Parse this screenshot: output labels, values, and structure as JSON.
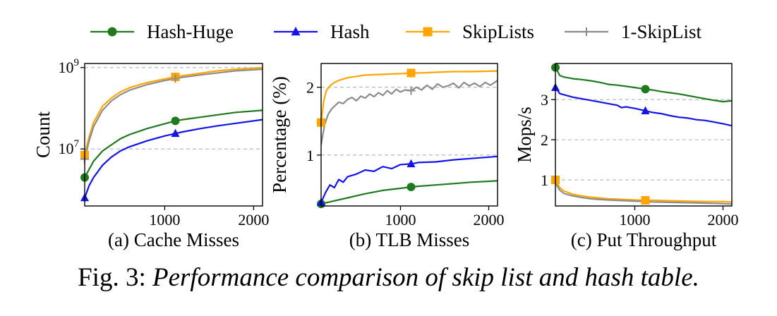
{
  "caption": {
    "prefix": "Fig. 3:",
    "title": "Performance comparison of skip list and hash table."
  },
  "legend": {
    "placement": "top-center",
    "entries": [
      {
        "label": "Hash-Huge",
        "color": "#1f7a1f",
        "marker": "circle"
      },
      {
        "label": "Hash",
        "color": "#1414e6",
        "marker": "triangle"
      },
      {
        "label": "SkipLists",
        "color": "#ffa500",
        "marker": "square"
      },
      {
        "label": "1-SkipList",
        "color": "#8c8c8c",
        "marker": "plus"
      }
    ]
  },
  "chart_data": [
    {
      "type": "line",
      "subtitle": "(a) Cache Misses",
      "ylabel": "Count",
      "xlabel": "",
      "yscale": "log",
      "xlim": [
        100,
        2100
      ],
      "ylim_log10": [
        5.6,
        9.1
      ],
      "xticks": [
        {
          "value": 1000,
          "label": "1000"
        },
        {
          "value": 2000,
          "label": "2000"
        }
      ],
      "yticks": [
        {
          "exp": 7,
          "base": "10",
          "sup": "7"
        },
        {
          "exp": 9,
          "base": "10",
          "sup": "9"
        }
      ],
      "grid": "horizontal-dashed",
      "series": [
        {
          "name": "Hash-Huge",
          "x": [
            100,
            150,
            200,
            300,
            400,
            500,
            600,
            800,
            1000,
            1120,
            1200,
            1400,
            1600,
            1800,
            2100
          ],
          "log10y": [
            6.3,
            6.5,
            6.7,
            6.95,
            7.1,
            7.25,
            7.35,
            7.5,
            7.62,
            7.69,
            7.72,
            7.78,
            7.84,
            7.9,
            7.95
          ]
        },
        {
          "name": "Hash",
          "x": [
            100,
            150,
            200,
            300,
            400,
            500,
            600,
            800,
            1000,
            1120,
            1200,
            1400,
            1600,
            1800,
            2100
          ],
          "log10y": [
            5.8,
            6.1,
            6.3,
            6.6,
            6.8,
            6.95,
            7.05,
            7.2,
            7.32,
            7.38,
            7.42,
            7.5,
            7.57,
            7.63,
            7.72
          ]
        },
        {
          "name": "SkipLists",
          "x": [
            100,
            150,
            200,
            300,
            400,
            500,
            600,
            800,
            1000,
            1120,
            1200,
            1400,
            1600,
            1800,
            2100
          ],
          "log10y": [
            6.85,
            7.3,
            7.65,
            8.05,
            8.25,
            8.4,
            8.5,
            8.63,
            8.72,
            8.77,
            8.8,
            8.86,
            8.92,
            8.96,
            9.0
          ]
        },
        {
          "name": "1-SkipList",
          "x": [
            100,
            150,
            200,
            300,
            400,
            500,
            600,
            800,
            1000,
            1120,
            1200,
            1400,
            1600,
            1800,
            2100
          ],
          "log10y": [
            6.75,
            7.2,
            7.55,
            7.95,
            8.18,
            8.33,
            8.44,
            8.58,
            8.68,
            8.73,
            8.76,
            8.82,
            8.87,
            8.92,
            8.96
          ]
        }
      ],
      "markers": [
        {
          "series": "Hash-Huge",
          "x": [
            100,
            1120
          ],
          "log10y": [
            6.3,
            7.69
          ]
        },
        {
          "series": "Hash",
          "x": [
            100,
            1120
          ],
          "log10y": [
            5.8,
            7.38
          ]
        },
        {
          "series": "SkipLists",
          "x": [
            100,
            1120
          ],
          "log10y": [
            6.85,
            8.77
          ]
        },
        {
          "series": "1-SkipList",
          "x": [
            100,
            1120
          ],
          "log10y": [
            6.75,
            8.73
          ]
        }
      ]
    },
    {
      "type": "line",
      "subtitle": "(b) TLB Misses",
      "ylabel": "Percentage (%)",
      "xlabel": "",
      "xlim": [
        100,
        2100
      ],
      "ylim": [
        0.25,
        2.35
      ],
      "xticks": [
        {
          "value": 1000,
          "label": "1000"
        },
        {
          "value": 2000,
          "label": "2000"
        }
      ],
      "yticks": [
        {
          "value": 1,
          "label": "1"
        },
        {
          "value": 2,
          "label": "2"
        }
      ],
      "grid": "horizontal-dashed",
      "series": [
        {
          "name": "Hash-Huge",
          "x": [
            100,
            200,
            300,
            400,
            600,
            800,
            1000,
            1120,
            1200,
            1400,
            1600,
            1800,
            2100
          ],
          "y": [
            0.28,
            0.31,
            0.34,
            0.37,
            0.43,
            0.48,
            0.51,
            0.53,
            0.54,
            0.56,
            0.58,
            0.6,
            0.62
          ]
        },
        {
          "name": "Hash",
          "x": [
            100,
            150,
            200,
            250,
            300,
            350,
            400,
            500,
            600,
            700,
            800,
            900,
            1000,
            1120,
            1200,
            1400,
            1600,
            1800,
            2100
          ],
          "y": [
            0.3,
            0.45,
            0.56,
            0.52,
            0.64,
            0.6,
            0.68,
            0.72,
            0.78,
            0.76,
            0.83,
            0.8,
            0.86,
            0.87,
            0.89,
            0.9,
            0.93,
            0.95,
            0.98
          ]
        },
        {
          "name": "SkipLists",
          "x": [
            100,
            130,
            160,
            200,
            250,
            300,
            400,
            500,
            600,
            800,
            1000,
            1120,
            1200,
            1400,
            1600,
            1800,
            2100
          ],
          "y": [
            1.48,
            1.8,
            1.95,
            2.02,
            2.07,
            2.1,
            2.14,
            2.16,
            2.18,
            2.19,
            2.2,
            2.21,
            2.21,
            2.22,
            2.23,
            2.23,
            2.24
          ]
        },
        {
          "name": "1-SkipList",
          "x": [
            100,
            140,
            180,
            220,
            260,
            300,
            350,
            400,
            450,
            500,
            550,
            600,
            650,
            700,
            750,
            800,
            850,
            900,
            950,
            1000,
            1050,
            1120,
            1180,
            1240,
            1300,
            1360,
            1420,
            1480,
            1540,
            1600,
            1660,
            1720,
            1780,
            1840,
            1900,
            1960,
            2020,
            2100
          ],
          "y": [
            1.15,
            1.45,
            1.6,
            1.68,
            1.73,
            1.78,
            1.76,
            1.82,
            1.85,
            1.8,
            1.87,
            1.84,
            1.9,
            1.86,
            1.92,
            1.88,
            1.95,
            1.9,
            1.97,
            1.93,
            1.96,
            1.95,
            2.0,
            1.96,
            2.03,
            1.97,
            2.05,
            2.0,
            2.02,
            2.06,
            1.99,
            2.07,
            2.02,
            2.06,
            2.01,
            2.07,
            2.03,
            2.1
          ]
        }
      ],
      "markers": [
        {
          "series": "Hash-Huge",
          "x": [
            100,
            1120
          ],
          "y": [
            0.28,
            0.53
          ]
        },
        {
          "series": "Hash",
          "x": [
            100,
            1120
          ],
          "y": [
            0.3,
            0.87
          ]
        },
        {
          "series": "SkipLists",
          "x": [
            100,
            1120
          ],
          "y": [
            1.48,
            2.21
          ]
        },
        {
          "series": "1-SkipList",
          "x": [
            1120
          ],
          "y": [
            1.95
          ]
        }
      ]
    },
    {
      "type": "line",
      "subtitle": "(c) Put Throughput",
      "ylabel": "Mops/s",
      "xlabel": "",
      "xlim": [
        100,
        2100
      ],
      "ylim": [
        0.35,
        3.9
      ],
      "xticks": [
        {
          "value": 1000,
          "label": "1000"
        },
        {
          "value": 2000,
          "label": "2000"
        }
      ],
      "yticks": [
        {
          "value": 1,
          "label": "1"
        },
        {
          "value": 2,
          "label": "2"
        },
        {
          "value": 3,
          "label": "3"
        }
      ],
      "grid": "horizontal-dashed",
      "series": [
        {
          "name": "Hash-Huge",
          "x": [
            100,
            150,
            200,
            300,
            400,
            500,
            600,
            700,
            800,
            900,
            1000,
            1120,
            1200,
            1300,
            1400,
            1500,
            1600,
            1700,
            1800,
            1900,
            2000,
            2100
          ],
          "y": [
            3.8,
            3.6,
            3.56,
            3.52,
            3.5,
            3.47,
            3.43,
            3.38,
            3.36,
            3.33,
            3.3,
            3.26,
            3.24,
            3.2,
            3.17,
            3.14,
            3.1,
            3.06,
            3.02,
            2.98,
            2.95,
            2.97
          ]
        },
        {
          "name": "Hash",
          "x": [
            100,
            150,
            200,
            300,
            400,
            500,
            600,
            700,
            800,
            850,
            900,
            1000,
            1120,
            1200,
            1300,
            1400,
            1500,
            1600,
            1700,
            1800,
            1900,
            2000,
            2100
          ],
          "y": [
            3.3,
            3.15,
            3.12,
            3.06,
            3.02,
            2.98,
            2.94,
            2.9,
            2.86,
            2.8,
            2.82,
            2.78,
            2.72,
            2.68,
            2.65,
            2.6,
            2.56,
            2.54,
            2.5,
            2.48,
            2.44,
            2.4,
            2.35
          ]
        },
        {
          "name": "SkipLists",
          "x": [
            100,
            150,
            200,
            300,
            400,
            500,
            600,
            700,
            800,
            1000,
            1120,
            1200,
            1400,
            1600,
            1800,
            2000,
            2100
          ],
          "y": [
            1.0,
            0.8,
            0.72,
            0.64,
            0.6,
            0.57,
            0.55,
            0.53,
            0.52,
            0.5,
            0.49,
            0.49,
            0.48,
            0.47,
            0.46,
            0.46,
            0.45
          ]
        },
        {
          "name": "1-SkipList",
          "x": [
            100,
            150,
            200,
            300,
            400,
            500,
            600,
            700,
            800,
            1000,
            1120,
            1200,
            1400,
            1600,
            1800,
            2000,
            2100
          ],
          "y": [
            0.92,
            0.74,
            0.66,
            0.6,
            0.56,
            0.53,
            0.51,
            0.5,
            0.49,
            0.47,
            0.46,
            0.45,
            0.44,
            0.43,
            0.42,
            0.41,
            0.4
          ]
        }
      ],
      "markers": [
        {
          "series": "Hash-Huge",
          "x": [
            100,
            1120
          ],
          "y": [
            3.8,
            3.26
          ]
        },
        {
          "series": "Hash",
          "x": [
            100,
            1120
          ],
          "y": [
            3.3,
            2.72
          ]
        },
        {
          "series": "SkipLists",
          "x": [
            100,
            1120
          ],
          "y": [
            1.0,
            0.49
          ]
        }
      ]
    }
  ]
}
